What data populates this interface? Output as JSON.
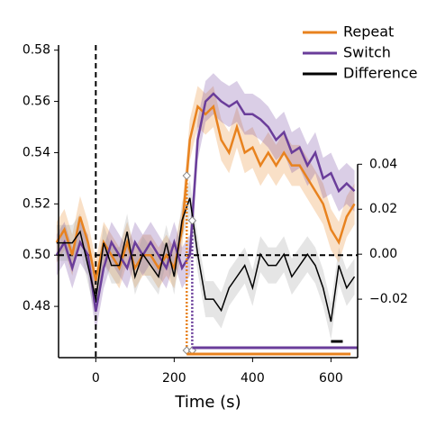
{
  "chart_data": {
    "type": "line",
    "xlabel": "Time (s)",
    "x": [
      -100,
      -80,
      -60,
      -40,
      -20,
      0,
      20,
      40,
      60,
      80,
      100,
      120,
      140,
      160,
      180,
      200,
      220,
      240,
      260,
      280,
      300,
      320,
      340,
      360,
      380,
      400,
      420,
      440,
      460,
      480,
      500,
      520,
      540,
      560,
      580,
      600,
      620,
      640,
      660
    ],
    "series": [
      {
        "name": "Repeat",
        "color": "#e8821e",
        "ci": 0.008,
        "values": [
          0.505,
          0.51,
          0.5,
          0.515,
          0.505,
          0.49,
          0.505,
          0.5,
          0.495,
          0.505,
          0.495,
          0.5,
          0.5,
          0.495,
          0.5,
          0.495,
          0.51,
          0.545,
          0.558,
          0.555,
          0.558,
          0.545,
          0.54,
          0.55,
          0.54,
          0.542,
          0.535,
          0.54,
          0.535,
          0.54,
          0.535,
          0.535,
          0.53,
          0.525,
          0.52,
          0.51,
          0.505,
          0.515,
          0.52
        ]
      },
      {
        "name": "Switch",
        "color": "#6a3d9a",
        "ci": 0.008,
        "values": [
          0.5,
          0.505,
          0.495,
          0.505,
          0.5,
          0.478,
          0.495,
          0.505,
          0.5,
          0.495,
          0.505,
          0.5,
          0.505,
          0.5,
          0.495,
          0.505,
          0.495,
          0.5,
          0.545,
          0.56,
          0.563,
          0.56,
          0.558,
          0.56,
          0.555,
          0.555,
          0.553,
          0.55,
          0.545,
          0.548,
          0.54,
          0.542,
          0.535,
          0.54,
          0.53,
          0.532,
          0.525,
          0.528,
          0.525
        ]
      },
      {
        "name": "Difference",
        "color": "#000000",
        "ci": 0.008,
        "axis": "y2",
        "values": [
          0.005,
          0.005,
          0.005,
          0.01,
          -0.005,
          -0.02,
          0.005,
          -0.005,
          -0.005,
          0.01,
          -0.01,
          0,
          -0.005,
          -0.01,
          0.005,
          -0.01,
          0.015,
          0.025,
          0,
          -0.02,
          -0.02,
          -0.025,
          -0.015,
          -0.01,
          -0.005,
          -0.015,
          0,
          -0.005,
          -0.005,
          0,
          -0.01,
          -0.005,
          0,
          -0.005,
          -0.015,
          -0.03,
          -0.005,
          -0.015,
          -0.01
        ]
      }
    ],
    "onsets": [
      {
        "color": "#e8821e",
        "x": 232
      },
      {
        "color": "#6a3d9a",
        "x": 246
      }
    ],
    "significance": [
      {
        "color": "#e8821e",
        "start": 232,
        "end": 650
      },
      {
        "color": "#6a3d9a",
        "start": 246,
        "end": 668
      },
      {
        "color": "#000000",
        "start": 600,
        "end": 630
      }
    ],
    "reference_lines": {
      "x": 0,
      "y": 0.5
    },
    "xlim": [
      -95,
      668
    ],
    "xticks": [
      0,
      200,
      400,
      600
    ],
    "ylim": [
      0.46,
      0.582
    ],
    "yticks": [
      0.48,
      {
        "value": 0.5,
        "label": "0.50"
      },
      0.52,
      0.54,
      0.56,
      0.58
    ],
    "y2lim": [
      -0.046,
      0.093
    ],
    "y2ticks": [
      {
        "value": -0.02,
        "label": "−0.02"
      },
      {
        "value": 0,
        "label": "0.00"
      },
      0.02,
      0.04
    ]
  }
}
